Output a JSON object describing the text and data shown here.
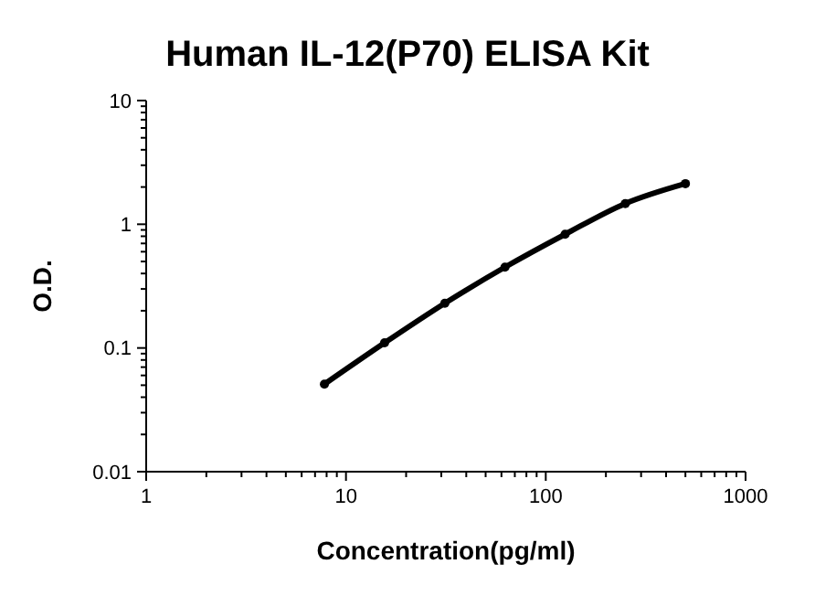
{
  "chart_data": {
    "type": "line",
    "title": "Human IL-12(P70) ELISA Kit",
    "xlabel": "Concentration(pg/ml)",
    "ylabel": "O.D.",
    "log": "xy",
    "marker": "circle",
    "line_style": "solid",
    "x": [
      7.8,
      15.6,
      31.25,
      62.5,
      125,
      250,
      500
    ],
    "series": [
      {
        "color": "#000000",
        "values": [
          0.051,
          0.11,
          0.23,
          0.45,
          0.83,
          1.47,
          2.13
        ]
      }
    ],
    "xlim": [
      1,
      1000
    ],
    "ylim": [
      0.01,
      10
    ],
    "xticks": [
      1,
      {
        "value": 2,
        "label": null
      },
      {
        "value": 3,
        "label": null
      },
      {
        "value": 4,
        "label": null
      },
      {
        "value": 5,
        "label": null
      },
      {
        "value": 6,
        "label": null
      },
      {
        "value": 7,
        "label": null
      },
      {
        "value": 8,
        "label": null
      },
      {
        "value": 9,
        "label": null
      },
      10,
      {
        "value": 20,
        "label": null
      },
      {
        "value": 30,
        "label": null
      },
      {
        "value": 40,
        "label": null
      },
      {
        "value": 50,
        "label": null
      },
      {
        "value": 60,
        "label": null
      },
      {
        "value": 70,
        "label": null
      },
      {
        "value": 80,
        "label": null
      },
      {
        "value": 90,
        "label": null
      },
      100,
      {
        "value": 200,
        "label": null
      },
      {
        "value": 300,
        "label": null
      },
      {
        "value": 400,
        "label": null
      },
      {
        "value": 500,
        "label": null
      },
      {
        "value": 600,
        "label": null
      },
      {
        "value": 700,
        "label": null
      },
      {
        "value": 800,
        "label": null
      },
      {
        "value": 900,
        "label": null
      },
      1000
    ],
    "yticks": [
      0.01,
      {
        "value": 0.02,
        "label": null
      },
      {
        "value": 0.03,
        "label": null
      },
      {
        "value": 0.04,
        "label": null
      },
      {
        "value": 0.05,
        "label": null
      },
      {
        "value": 0.06,
        "label": null
      },
      {
        "value": 0.07,
        "label": null
      },
      {
        "value": 0.08,
        "label": null
      },
      {
        "value": 0.09,
        "label": null
      },
      0.1,
      {
        "value": 0.2,
        "label": null
      },
      {
        "value": 0.3,
        "label": null
      },
      {
        "value": 0.4,
        "label": null
      },
      {
        "value": 0.5,
        "label": null
      },
      {
        "value": 0.6,
        "label": null
      },
      {
        "value": 0.7,
        "label": null
      },
      {
        "value": 0.8,
        "label": null
      },
      {
        "value": 0.9,
        "label": null
      },
      1,
      {
        "value": 2,
        "label": null
      },
      {
        "value": 3,
        "label": null
      },
      {
        "value": 4,
        "label": null
      },
      {
        "value": 5,
        "label": null
      },
      {
        "value": 6,
        "label": null
      },
      {
        "value": 7,
        "label": null
      },
      {
        "value": 8,
        "label": null
      },
      {
        "value": 9,
        "label": null
      },
      10
    ]
  }
}
